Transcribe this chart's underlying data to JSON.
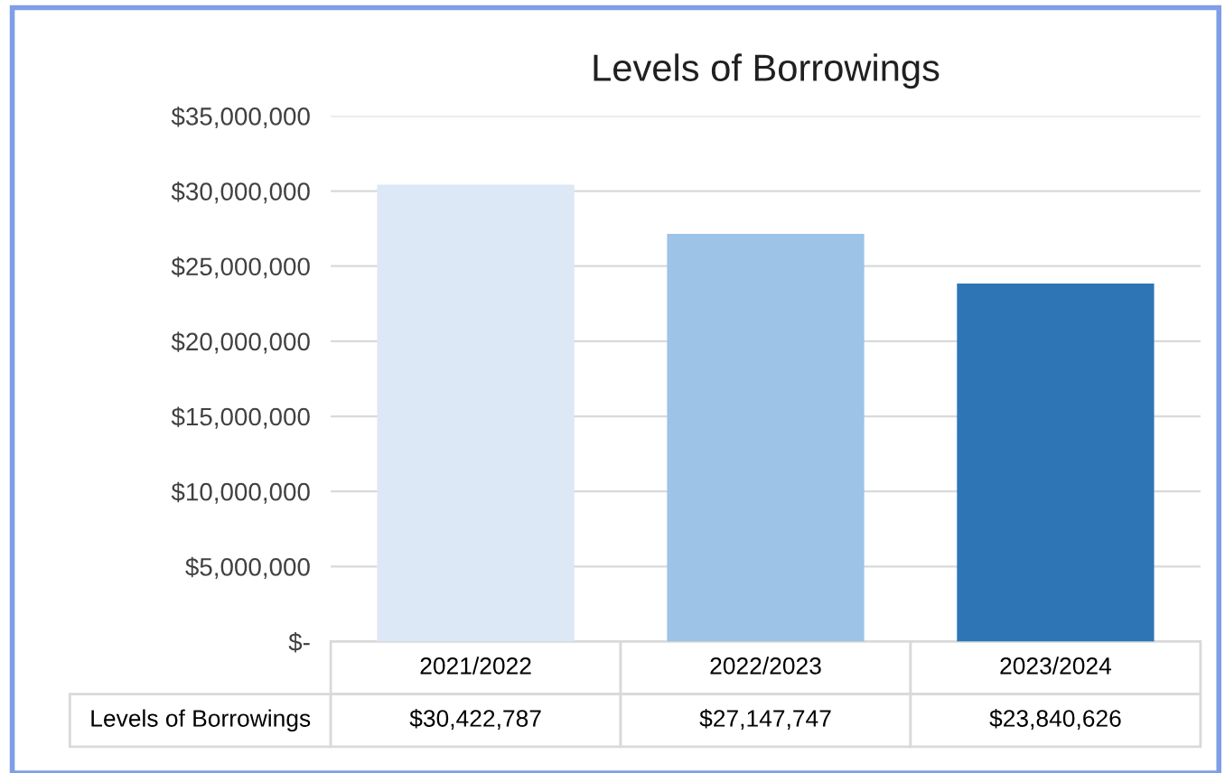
{
  "chart_data": {
    "type": "bar",
    "title": "Levels of Borrowings",
    "categories": [
      "2021/2022",
      "2022/2023",
      "2023/2024"
    ],
    "series": [
      {
        "name": "Levels of Borrowings",
        "colors": [
          "#dce8f6",
          "#9dc3e6",
          "#2e75b6"
        ],
        "values": [
          30422787,
          27147747,
          23840626
        ],
        "value_labels": [
          "$30,422,787",
          "$27,147,747",
          "$23,840,626"
        ]
      }
    ],
    "ylim": [
      0,
      35000000
    ],
    "yticks": [
      {
        "value": 0,
        "label": "$-"
      },
      {
        "value": 5000000,
        "label": "$5,000,000"
      },
      {
        "value": 10000000,
        "label": "$10,000,000"
      },
      {
        "value": 15000000,
        "label": "$15,000,000"
      },
      {
        "value": 20000000,
        "label": "$20,000,000"
      },
      {
        "value": 25000000,
        "label": "$25,000,000"
      },
      {
        "value": 30000000,
        "label": "$30,000,000"
      },
      {
        "value": 35000000,
        "label": "$35,000,000"
      }
    ],
    "grid": "y"
  }
}
